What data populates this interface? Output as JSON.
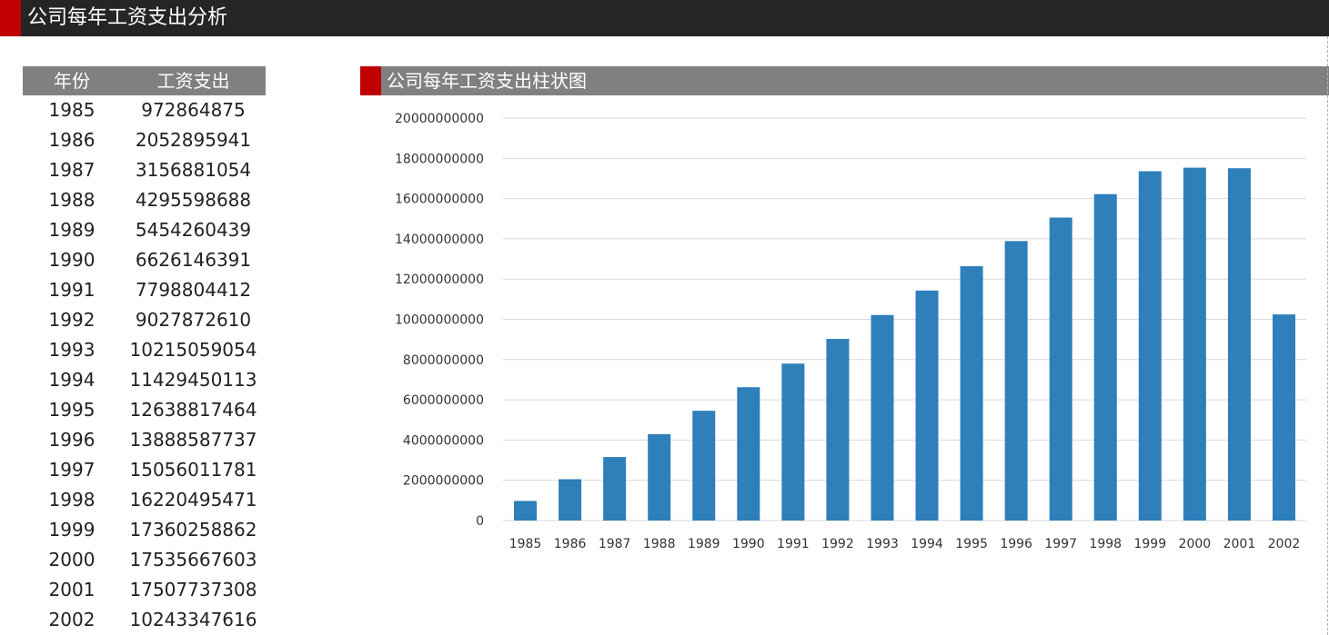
{
  "header": {
    "title": "公司每年工资支出分析"
  },
  "table": {
    "headers": {
      "year": "年份",
      "value": "工资支出"
    },
    "rows": [
      {
        "year": "1985",
        "value": "972864875"
      },
      {
        "year": "1986",
        "value": "2052895941"
      },
      {
        "year": "1987",
        "value": "3156881054"
      },
      {
        "year": "1988",
        "value": "4295598688"
      },
      {
        "year": "1989",
        "value": "5454260439"
      },
      {
        "year": "1990",
        "value": "6626146391"
      },
      {
        "year": "1991",
        "value": "7798804412"
      },
      {
        "year": "1992",
        "value": "9027872610"
      },
      {
        "year": "1993",
        "value": "10215059054"
      },
      {
        "year": "1994",
        "value": "11429450113"
      },
      {
        "year": "1995",
        "value": "12638817464"
      },
      {
        "year": "1996",
        "value": "13888587737"
      },
      {
        "year": "1997",
        "value": "15056011781"
      },
      {
        "year": "1998",
        "value": "16220495471"
      },
      {
        "year": "1999",
        "value": "17360258862"
      },
      {
        "year": "2000",
        "value": "17535667603"
      },
      {
        "year": "2001",
        "value": "17507737308"
      },
      {
        "year": "2002",
        "value": "10243347616"
      }
    ]
  },
  "chart_data": {
    "type": "bar",
    "title": "公司每年工资支出柱状图",
    "categories": [
      "1985",
      "1986",
      "1987",
      "1988",
      "1989",
      "1990",
      "1991",
      "1992",
      "1993",
      "1994",
      "1995",
      "1996",
      "1997",
      "1998",
      "1999",
      "2000",
      "2001",
      "2002"
    ],
    "values": [
      972864875,
      2052895941,
      3156881054,
      4295598688,
      5454260439,
      6626146391,
      7798804412,
      9027872610,
      10215059054,
      11429450113,
      12638817464,
      13888587737,
      15056011781,
      16220495471,
      17360258862,
      17535667603,
      17507737308,
      10243347616
    ],
    "yticks": [
      "0",
      "2000000000",
      "4000000000",
      "6000000000",
      "8000000000",
      "10000000000",
      "12000000000",
      "14000000000",
      "16000000000",
      "18000000000",
      "20000000000"
    ],
    "ylim": [
      0,
      20000000000
    ],
    "bar_color": "#2e7fba",
    "grid_color": "#d9d9d9",
    "grid": true,
    "legend": "none",
    "xlabel": "",
    "ylabel": ""
  },
  "colors": {
    "header_bg": "#252525",
    "accent": "#c00000",
    "table_header_bg": "#808080"
  }
}
